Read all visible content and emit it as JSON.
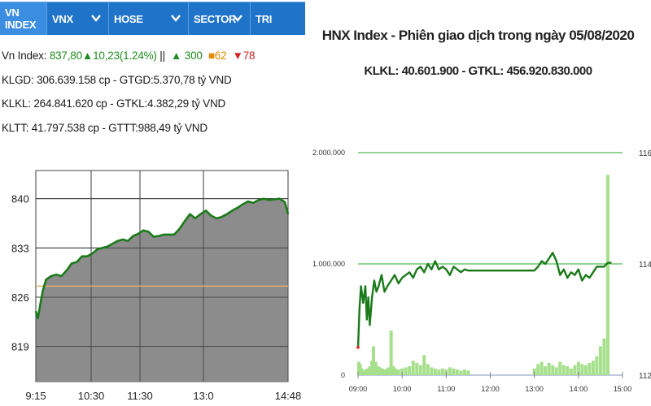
{
  "tabs": [
    {
      "label": "VN INDEX",
      "dropdown": false,
      "active": true
    },
    {
      "label": "VNX",
      "dropdown": true,
      "active": false
    },
    {
      "label": "HOSE",
      "dropdown": true,
      "active": false
    },
    {
      "label": "SECTOR",
      "dropdown": true,
      "active": false
    },
    {
      "label": "TRI",
      "dropdown": false,
      "active": false
    }
  ],
  "summary": {
    "index_label": "Vn Index:",
    "index_value": "837,80",
    "change": "10,23(1.24%)",
    "separator": "||",
    "advances": "300",
    "unchanged": "62",
    "declines": "78",
    "klgd": "KLGD: 306.639.158 cp - GTGD:5.370,78 tỷ VND",
    "klkl": "KLKL: 264.841.620 cp - GTKL:4.382,29 tỷ VND",
    "kltt": "KLTT: 41.797.538 cp - GTTT:988,49 tỷ VND"
  },
  "right_header": {
    "title": "HNX Index - Phiên giao dịch trong ngày 05/08/2020",
    "subtitle": "KLKL: 40.601.900 - GTKL: 456.920.830.000"
  },
  "colors": {
    "tab_bg": "#1f74c9",
    "tab_active": "#3a8de0",
    "index_line": "#1a7a1a",
    "area_fill": "#8c8c8c",
    "reference_line": "#e0b070",
    "volume_bar": "#a6e08c"
  },
  "chart_data": [
    {
      "type": "area",
      "title": "",
      "y_ticks": [
        819,
        826,
        833,
        840
      ],
      "x_ticks": [
        "9:15",
        "10:30",
        "11:30",
        "13:0",
        "14:48"
      ],
      "ylim": [
        814,
        844
      ],
      "reference_value": 827.57,
      "grid": true,
      "series": [
        {
          "values": [
            [
              "9:15",
              824.0
            ],
            [
              "9:17",
              823.0
            ],
            [
              "9:20",
              825.5
            ],
            [
              "9:22",
              827.0
            ],
            [
              "9:25",
              828.5
            ],
            [
              "9:30",
              829.0
            ],
            [
              "9:35",
              829.2
            ],
            [
              "9:40",
              829.0
            ],
            [
              "9:45",
              829.8
            ],
            [
              "9:50",
              830.8
            ],
            [
              "9:55",
              831.0
            ],
            [
              "10:00",
              831.8
            ],
            [
              "10:05",
              831.8
            ],
            [
              "10:10",
              832.2
            ],
            [
              "10:15",
              832.8
            ],
            [
              "10:20",
              833.0
            ],
            [
              "10:25",
              833.2
            ],
            [
              "10:30",
              833.6
            ],
            [
              "10:35",
              834.0
            ],
            [
              "10:40",
              834.2
            ],
            [
              "10:45",
              834.0
            ],
            [
              "10:50",
              834.7
            ],
            [
              "10:55",
              835.0
            ],
            [
              "11:00",
              835.5
            ],
            [
              "11:05",
              835.3
            ],
            [
              "11:10",
              834.6
            ],
            [
              "11:15",
              834.7
            ],
            [
              "11:20",
              834.9
            ],
            [
              "11:30",
              834.9
            ],
            [
              "13:00",
              834.9
            ],
            [
              "13:05",
              835.7
            ],
            [
              "13:10",
              836.8
            ],
            [
              "13:15",
              837.8
            ],
            [
              "13:20",
              837.2
            ],
            [
              "13:25",
              837.8
            ],
            [
              "13:30",
              838.3
            ],
            [
              "13:35",
              837.6
            ],
            [
              "13:40",
              837.2
            ],
            [
              "13:45",
              837.4
            ],
            [
              "13:50",
              837.8
            ],
            [
              "13:55",
              838.3
            ],
            [
              "14:00",
              838.7
            ],
            [
              "14:05",
              839.2
            ],
            [
              "14:10",
              839.6
            ],
            [
              "14:15",
              839.4
            ],
            [
              "14:20",
              839.8
            ],
            [
              "14:25",
              840.0
            ],
            [
              "14:30",
              839.8
            ],
            [
              "14:35",
              839.9
            ],
            [
              "14:40",
              840.0
            ],
            [
              "14:45",
              839.5
            ],
            [
              "14:48",
              837.8
            ]
          ]
        }
      ]
    },
    {
      "type": "line",
      "title": "HNX Index - Phiên giao dịch trong ngày 05/08/2020",
      "y_ticks_left": [
        "0",
        "1.000.000",
        "2.000.000"
      ],
      "y_ticks_right": [
        "112",
        "114",
        "116"
      ],
      "x_ticks": [
        "09:00",
        "10:00",
        "11:00",
        "12:00",
        "13:00",
        "14:00",
        "15:00"
      ],
      "ylim_left": [
        0,
        2000000
      ],
      "ylim_right": [
        112,
        116
      ],
      "grid": true,
      "series": [
        {
          "axis": "right",
          "values": [
            [
              "09:00",
              112.5
            ],
            [
              "09:02",
              113.2
            ],
            [
              "09:04",
              113.6
            ],
            [
              "09:07",
              113.3
            ],
            [
              "09:10",
              113.6
            ],
            [
              "09:12",
              113.0
            ],
            [
              "09:14",
              113.4
            ],
            [
              "09:16",
              112.9
            ],
            [
              "09:19",
              113.4
            ],
            [
              "09:22",
              113.7
            ],
            [
              "09:25",
              113.5
            ],
            [
              "09:28",
              113.6
            ],
            [
              "09:32",
              113.8
            ],
            [
              "09:36",
              113.5
            ],
            [
              "09:40",
              113.6
            ],
            [
              "09:45",
              113.7
            ],
            [
              "09:50",
              113.8
            ],
            [
              "09:55",
              113.65
            ],
            [
              "10:00",
              113.75
            ],
            [
              "10:05",
              113.8
            ],
            [
              "10:10",
              113.85
            ],
            [
              "10:15",
              113.75
            ],
            [
              "10:20",
              113.9
            ],
            [
              "10:25",
              113.95
            ],
            [
              "10:30",
              113.85
            ],
            [
              "10:35",
              114.0
            ],
            [
              "10:40",
              113.9
            ],
            [
              "10:45",
              114.05
            ],
            [
              "10:50",
              113.9
            ],
            [
              "10:55",
              113.95
            ],
            [
              "11:00",
              113.9
            ],
            [
              "11:05",
              113.8
            ],
            [
              "11:10",
              113.95
            ],
            [
              "11:15",
              113.9
            ],
            [
              "11:20",
              113.85
            ],
            [
              "11:25",
              113.9
            ],
            [
              "11:30",
              113.88
            ],
            [
              "13:00",
              113.88
            ],
            [
              "13:05",
              113.95
            ],
            [
              "13:10",
              114.05
            ],
            [
              "13:15",
              114.0
            ],
            [
              "13:20",
              114.1
            ],
            [
              "13:25",
              114.2
            ],
            [
              "13:30",
              114.05
            ],
            [
              "13:35",
              113.8
            ],
            [
              "13:40",
              113.9
            ],
            [
              "13:45",
              113.75
            ],
            [
              "13:50",
              113.85
            ],
            [
              "13:55",
              113.8
            ],
            [
              "14:00",
              113.9
            ],
            [
              "14:05",
              113.7
            ],
            [
              "14:10",
              113.8
            ],
            [
              "14:15",
              113.75
            ],
            [
              "14:20",
              113.85
            ],
            [
              "14:25",
              113.95
            ],
            [
              "14:30",
              113.95
            ],
            [
              "14:35",
              113.95
            ],
            [
              "14:40",
              114.02
            ],
            [
              "14:45",
              114.02
            ]
          ]
        },
        {
          "type": "bar",
          "axis": "left",
          "values": [
            [
              "09:01",
              120000
            ],
            [
              "09:03",
              100000
            ],
            [
              "09:05",
              60000
            ],
            [
              "09:08",
              40000
            ],
            [
              "09:10",
              50000
            ],
            [
              "09:13",
              60000
            ],
            [
              "09:16",
              80000
            ],
            [
              "09:19",
              130000
            ],
            [
              "09:21",
              260000
            ],
            [
              "09:24",
              120000
            ],
            [
              "09:27",
              80000
            ],
            [
              "09:30",
              70000
            ],
            [
              "09:33",
              60000
            ],
            [
              "09:36",
              50000
            ],
            [
              "09:39",
              60000
            ],
            [
              "09:42",
              70000
            ],
            [
              "09:45",
              400000
            ],
            [
              "09:48",
              80000
            ],
            [
              "09:51",
              60000
            ],
            [
              "09:55",
              50000
            ],
            [
              "10:00",
              60000
            ],
            [
              "10:05",
              70000
            ],
            [
              "10:10",
              80000
            ],
            [
              "10:15",
              130000
            ],
            [
              "10:20",
              110000
            ],
            [
              "10:25",
              90000
            ],
            [
              "10:30",
              180000
            ],
            [
              "10:35",
              100000
            ],
            [
              "10:40",
              70000
            ],
            [
              "10:45",
              60000
            ],
            [
              "10:50",
              50000
            ],
            [
              "10:55",
              60000
            ],
            [
              "11:00",
              50000
            ],
            [
              "11:05",
              70000
            ],
            [
              "11:10",
              60000
            ],
            [
              "11:15",
              50000
            ],
            [
              "11:20",
              40000
            ],
            [
              "11:25",
              50000
            ],
            [
              "11:30",
              40000
            ],
            [
              "13:00",
              60000
            ],
            [
              "13:05",
              100000
            ],
            [
              "13:10",
              120000
            ],
            [
              "13:15",
              80000
            ],
            [
              "13:20",
              110000
            ],
            [
              "13:25",
              90000
            ],
            [
              "13:30",
              70000
            ],
            [
              "13:35",
              120000
            ],
            [
              "13:40",
              90000
            ],
            [
              "13:45",
              80000
            ],
            [
              "13:50",
              60000
            ],
            [
              "13:55",
              90000
            ],
            [
              "14:00",
              120000
            ],
            [
              "14:05",
              100000
            ],
            [
              "14:10",
              90000
            ],
            [
              "14:15",
              110000
            ],
            [
              "14:20",
              130000
            ],
            [
              "14:25",
              170000
            ],
            [
              "14:30",
              260000
            ],
            [
              "14:35",
              330000
            ],
            [
              "14:40",
              1800000
            ]
          ]
        }
      ]
    }
  ]
}
